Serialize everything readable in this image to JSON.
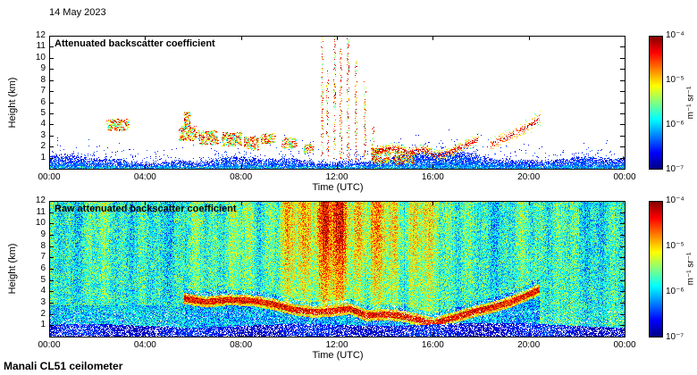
{
  "figure": {
    "date": "14 May 2023",
    "footer": "Manali CL51 ceilometer"
  },
  "chart_data": [
    {
      "type": "heatmap",
      "panel": "top",
      "title": "Attenuated backscatter coefficient",
      "xlabel": "Time (UTC)",
      "ylabel": "Height (km)",
      "x_ticks": [
        "00:00",
        "04:00",
        "08:00",
        "12:00",
        "16:00",
        "20:00",
        "00:00"
      ],
      "x_tick_hours": [
        0,
        4,
        8,
        12,
        16,
        20,
        24
      ],
      "xlim_hours": [
        0,
        24
      ],
      "y_ticks": [
        1,
        2,
        3,
        4,
        5,
        6,
        7,
        8,
        9,
        10,
        11,
        12
      ],
      "ylim_km": [
        0,
        12
      ],
      "colormap": "jet",
      "background": "#ffffff",
      "colorbar": {
        "ticks": [
          "10⁻⁴",
          "10⁻⁵",
          "10⁻⁶",
          "10⁻⁷"
        ],
        "label": "m⁻¹ sr⁻¹",
        "scale": "log",
        "range": [
          1e-07,
          0.0001
        ]
      },
      "features": {
        "surface_aerosol_layer_top_km": 1.2,
        "aerosol_clusters": [
          {
            "t0": 2.4,
            "t1": 3.3,
            "h0": 3.5,
            "h1": 4.5
          },
          {
            "t0": 5.4,
            "t1": 6.1,
            "h0": 2.6,
            "h1": 3.9
          },
          {
            "t0": 5.6,
            "t1": 5.85,
            "h0": 3.8,
            "h1": 5.2
          },
          {
            "t0": 6.2,
            "t1": 7.0,
            "h0": 2.2,
            "h1": 3.5
          },
          {
            "t0": 7.2,
            "t1": 8.0,
            "h0": 2.1,
            "h1": 3.3
          },
          {
            "t0": 8.1,
            "t1": 8.7,
            "h0": 1.8,
            "h1": 2.9
          },
          {
            "t0": 8.8,
            "t1": 9.4,
            "h0": 2.3,
            "h1": 3.2
          },
          {
            "t0": 9.7,
            "t1": 10.3,
            "h0": 1.9,
            "h1": 2.8
          },
          {
            "t0": 10.6,
            "t1": 11.0,
            "h0": 1.5,
            "h1": 2.3
          },
          {
            "t0": 13.4,
            "t1": 14.2,
            "h0": 0.5,
            "h1": 1.9
          },
          {
            "t0": 14.3,
            "t1": 15.2,
            "h0": 0.5,
            "h1": 1.6
          }
        ],
        "precip_streaks": [
          {
            "t": 11.35,
            "h_top": 12
          },
          {
            "t": 11.6,
            "h_top": 9
          },
          {
            "t": 11.9,
            "h_top": 12
          },
          {
            "t": 12.15,
            "h_top": 11
          },
          {
            "t": 12.45,
            "h_top": 12
          },
          {
            "t": 12.8,
            "h_top": 10
          },
          {
            "t": 13.15,
            "h_top": 8
          },
          {
            "t": 13.5,
            "h_top": 4
          }
        ],
        "cloud_band": [
          [
            13.6,
            1.6
          ],
          [
            14.3,
            1.9
          ],
          [
            15.0,
            1.5
          ],
          [
            15.6,
            1.8
          ],
          [
            16.1,
            1.2
          ],
          [
            16.7,
            1.5
          ],
          [
            17.3,
            2.1
          ],
          [
            17.9,
            2.7
          ]
        ],
        "plume": [
          [
            18.4,
            2.2
          ],
          [
            19.0,
            2.8
          ],
          [
            19.6,
            3.4
          ],
          [
            20.1,
            4.0
          ],
          [
            20.5,
            4.7
          ]
        ]
      }
    },
    {
      "type": "heatmap",
      "panel": "bottom",
      "title": "Raw attenuated backscatter coefficient",
      "xlabel": "Time (UTC)",
      "ylabel": "Height (km)",
      "x_ticks": [
        "00:00",
        "04:00",
        "08:00",
        "12:00",
        "16:00",
        "20:00",
        "00:00"
      ],
      "x_tick_hours": [
        0,
        4,
        8,
        12,
        16,
        20,
        24
      ],
      "xlim_hours": [
        0,
        24
      ],
      "y_ticks": [
        1,
        2,
        3,
        4,
        5,
        6,
        7,
        8,
        9,
        10,
        11,
        12
      ],
      "ylim_km": [
        0,
        12
      ],
      "colormap": "jet",
      "background": "#ffffff",
      "colorbar": {
        "ticks": [
          "10⁻⁴",
          "10⁻⁵",
          "10⁻⁶",
          "10⁻⁷"
        ],
        "label": "m⁻¹ sr⁻¹",
        "scale": "log",
        "range": [
          1e-07,
          0.0001
        ]
      },
      "features": {
        "aerosol_layer_path": [
          [
            5.6,
            3.4
          ],
          [
            6.5,
            3.1
          ],
          [
            7.5,
            3.3
          ],
          [
            8.5,
            3.2
          ],
          [
            9.3,
            2.9
          ],
          [
            10.2,
            2.4
          ],
          [
            11.0,
            2.2
          ],
          [
            11.8,
            2.3
          ],
          [
            12.5,
            2.5
          ],
          [
            13.2,
            1.9
          ],
          [
            14.0,
            2.0
          ],
          [
            14.8,
            1.8
          ],
          [
            15.4,
            1.5
          ],
          [
            16.0,
            1.2
          ],
          [
            16.8,
            1.7
          ],
          [
            17.6,
            2.2
          ],
          [
            18.4,
            2.6
          ],
          [
            19.2,
            3.1
          ],
          [
            19.8,
            3.6
          ],
          [
            20.4,
            4.2
          ]
        ],
        "convective_enhancement": {
          "t_center": 12.3,
          "t_sigma": 3.2,
          "strength": 0.32
        }
      }
    }
  ]
}
